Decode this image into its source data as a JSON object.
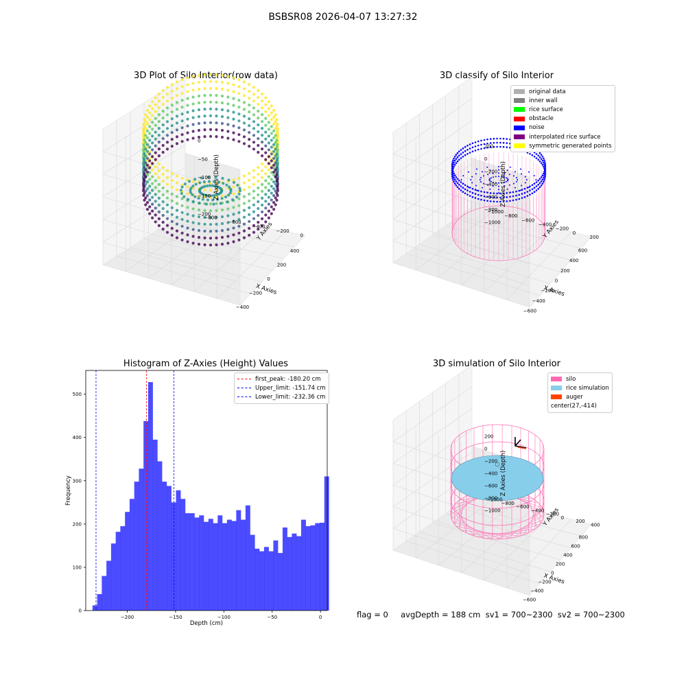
{
  "suptitle": "BSBSR08 2026-04-07 13:27:32",
  "colors": {
    "original": "#b0b0b0",
    "inner_wall": "#808080",
    "rice_surface": "#00ff00",
    "obstacle": "#ff0000",
    "noise": "#0000ff",
    "interp": "#800080",
    "symmetric": "#ffff00",
    "silo": "#ff69b4",
    "rice_sim": "#87ceeb",
    "auger": "#ff4500",
    "hist": "#0000ff"
  },
  "panel1": {
    "title": "3D Plot of Silo Interior(row data)",
    "xlabel": "X Axies",
    "ylabel": "Y Axies",
    "zlabel": "Z Axies (Depth)",
    "xticks": [
      "-400",
      "-200",
      "0",
      "200",
      "400"
    ],
    "yticks": [
      "0",
      "-200",
      "-400",
      "-600",
      "-800"
    ],
    "zticks": [
      "0",
      "-50",
      "-100",
      "-150",
      "-200"
    ]
  },
  "panel2": {
    "title": "3D classify of Silo Interior",
    "xlabel": "X Axies",
    "ylabel": "Y Axies",
    "zlabel": "Z Axies (Depth)",
    "xticks": [
      "-600",
      "-400",
      "-200",
      "0",
      "200",
      "400",
      "600"
    ],
    "yticks": [
      "200",
      "0",
      "-200",
      "-400",
      "-600",
      "-800",
      "-1000"
    ],
    "zticks": [
      "200",
      "0",
      "-200",
      "-400",
      "-600",
      "-800",
      "-1000"
    ],
    "legend": [
      "original data",
      "inner wall",
      "rice surface",
      "obstacle",
      "noise",
      "interpolated rice surface",
      "symmetric generated points"
    ]
  },
  "panel4": {
    "title": "3D simulation of Silo Interior",
    "xlabel": "X Axies",
    "ylabel": "Y Axies",
    "zlabel": "Z Axies (Depth)",
    "xticks": [
      "-600",
      "-400",
      "-200",
      "0",
      "200",
      "400",
      "600",
      "800"
    ],
    "yticks": [
      "400",
      "200",
      "0",
      "-200",
      "-400",
      "-600",
      "-800",
      "-1000"
    ],
    "zticks": [
      "200",
      "0",
      "-200",
      "-400",
      "-600",
      "-800",
      "-1000"
    ],
    "legend": [
      "silo",
      "rice simulation",
      "auger",
      "center(27,-414)"
    ]
  },
  "footer": "flag = 0     avgDepth = 188 cm  sv1 = 700~2300  sv2 = 700~2300",
  "chart_data": {
    "type": "bar",
    "title": "Histogram of Z-Axies (Height) Values",
    "xlabel": "Depth (cm)",
    "ylabel": "Frequency",
    "xlim": [
      -243,
      7
    ],
    "ylim": [
      0,
      555
    ],
    "xticks": [
      -200,
      -150,
      -100,
      -50,
      0
    ],
    "yticks": [
      0,
      100,
      200,
      300,
      400,
      500
    ],
    "bin_start": -236,
    "bin_width": 4.8,
    "values": [
      12,
      38,
      80,
      115,
      155,
      182,
      195,
      228,
      258,
      298,
      328,
      438,
      528,
      395,
      345,
      298,
      288,
      250,
      278,
      258,
      225,
      225,
      215,
      220,
      205,
      212,
      202,
      220,
      202,
      210,
      207,
      232,
      210,
      243,
      175,
      143,
      137,
      147,
      137,
      162,
      133,
      192,
      170,
      178,
      172,
      210,
      195,
      197,
      202,
      203,
      310
    ],
    "vlines": [
      {
        "label": "first_peak: -180.20 cm",
        "x": -180.2,
        "color": "#ff0000"
      },
      {
        "label": "Upper_limit: -151.74 cm",
        "x": -151.74,
        "color": "#0000ff"
      },
      {
        "label": "Lower_limit: -232.36 cm",
        "x": -232.36,
        "color": "#0000ff"
      }
    ]
  }
}
